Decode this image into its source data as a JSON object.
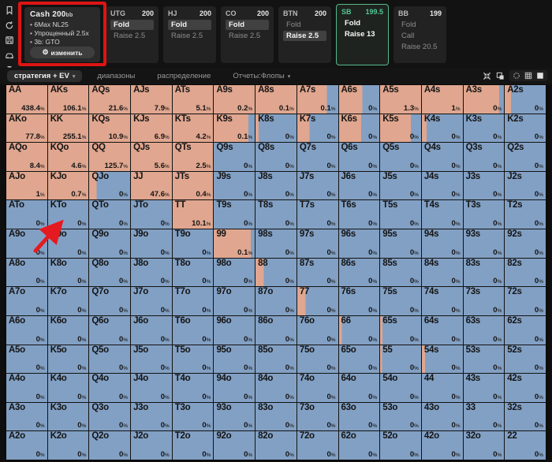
{
  "colors": {
    "raise": "#e0a68f",
    "fold": "#82a0c4",
    "accent_green": "#55c693",
    "annotation_red": "#e01616",
    "panel_bg": "#222222",
    "highlight_pill": "#414141"
  },
  "sidebar": {
    "icons": [
      "bookmark-icon",
      "history-icon",
      "save-icon",
      "car-icon",
      "text-cursor-icon"
    ]
  },
  "cash_panel": {
    "title": "Cash",
    "stack": "200",
    "stack_unit": "bb",
    "lines": [
      "6Max NL25",
      "Упрощенный 2.5x",
      "3b: GTO"
    ],
    "button_label": "изменить",
    "button_icon": "gear-icon"
  },
  "positions": [
    {
      "name": "UTG",
      "stack": "200",
      "selected": false,
      "actions": [
        {
          "label": "Fold",
          "state": "highlight"
        },
        {
          "label": "Raise 2.5",
          "state": "dim"
        }
      ]
    },
    {
      "name": "HJ",
      "stack": "200",
      "selected": false,
      "actions": [
        {
          "label": "Fold",
          "state": "highlight"
        },
        {
          "label": "Raise 2.5",
          "state": "dim"
        }
      ]
    },
    {
      "name": "CO",
      "stack": "200",
      "selected": false,
      "actions": [
        {
          "label": "Fold",
          "state": "highlight"
        },
        {
          "label": "Raise 2.5",
          "state": "dim"
        }
      ]
    },
    {
      "name": "BTN",
      "stack": "200",
      "selected": false,
      "actions": [
        {
          "label": "Fold",
          "state": "dim"
        },
        {
          "label": "Raise 2.5",
          "state": "highlight"
        }
      ]
    },
    {
      "name": "SB",
      "stack": "199.5",
      "selected": true,
      "actions": [
        {
          "label": "Fold",
          "state": "bold"
        },
        {
          "label": "Raise 13",
          "state": "bold"
        }
      ]
    },
    {
      "name": "BB",
      "stack": "199",
      "selected": false,
      "actions": [
        {
          "label": "Fold",
          "state": "dim"
        },
        {
          "label": "Call",
          "state": "dim"
        },
        {
          "label": "Raise 20.5",
          "state": "dim"
        }
      ]
    }
  ],
  "tabs": [
    {
      "label": "стратегия + EV",
      "active": true,
      "dropdown": true
    },
    {
      "label": "диапазоны",
      "active": false,
      "dropdown": false
    },
    {
      "label": "распределение",
      "active": false,
      "dropdown": false
    },
    {
      "label": "Отчеты:Флопы",
      "active": false,
      "dropdown": true
    }
  ],
  "view_icons": [
    "collapse-icon",
    "copy-icon",
    "record-icon",
    "grid-view-icon",
    "square-view-icon"
  ],
  "grid": {
    "cell_format": [
      "hand",
      "value_pct",
      "raise_color_width_pct"
    ],
    "rows": [
      [
        [
          "AA",
          "438.4",
          100
        ],
        [
          "AKs",
          "106.1",
          100
        ],
        [
          "AQs",
          "21.6",
          100
        ],
        [
          "AJs",
          "7.9",
          100
        ],
        [
          "ATs",
          "5.1",
          100
        ],
        [
          "A9s",
          "0.2",
          100
        ],
        [
          "A8s",
          "0.1",
          100
        ],
        [
          "A7s",
          "0.1",
          72
        ],
        [
          "A6s",
          "0",
          58
        ],
        [
          "A5s",
          "1.3",
          100
        ],
        [
          "A4s",
          "1",
          100
        ],
        [
          "A3s",
          "0",
          88
        ],
        [
          "A2s",
          "0",
          15
        ]
      ],
      [
        [
          "AKo",
          "77.8",
          100
        ],
        [
          "KK",
          "255.1",
          100
        ],
        [
          "KQs",
          "10.9",
          100
        ],
        [
          "KJs",
          "6.9",
          100
        ],
        [
          "KTs",
          "4.2",
          100
        ],
        [
          "K9s",
          "0.1",
          85
        ],
        [
          "K8s",
          "0",
          8
        ],
        [
          "K7s",
          "0",
          30
        ],
        [
          "K6s",
          "0",
          55
        ],
        [
          "K5s",
          "0",
          75
        ],
        [
          "K4s",
          "0",
          12
        ],
        [
          "K3s",
          "0",
          0
        ],
        [
          "K2s",
          "0",
          0
        ]
      ],
      [
        [
          "AQo",
          "8.4",
          100
        ],
        [
          "KQo",
          "4.6",
          100
        ],
        [
          "QQ",
          "125.7",
          100
        ],
        [
          "QJs",
          "5.6",
          100
        ],
        [
          "QTs",
          "2.5",
          100
        ],
        [
          "Q9s",
          "0",
          0
        ],
        [
          "Q8s",
          "0",
          0
        ],
        [
          "Q7s",
          "0",
          0
        ],
        [
          "Q6s",
          "0",
          0
        ],
        [
          "Q5s",
          "0",
          0
        ],
        [
          "Q4s",
          "0",
          0
        ],
        [
          "Q3s",
          "0",
          0
        ],
        [
          "Q2s",
          "0",
          0
        ]
      ],
      [
        [
          "AJo",
          "1",
          100
        ],
        [
          "KJo",
          "0.7",
          100
        ],
        [
          "QJo",
          "0",
          18
        ],
        [
          "JJ",
          "47.6",
          100
        ],
        [
          "JTs",
          "0.4",
          100
        ],
        [
          "J9s",
          "0",
          0
        ],
        [
          "J8s",
          "0",
          0
        ],
        [
          "J7s",
          "0",
          0
        ],
        [
          "J6s",
          "0",
          0
        ],
        [
          "J5s",
          "0",
          0
        ],
        [
          "J4s",
          "0",
          0
        ],
        [
          "J3s",
          "0",
          0
        ],
        [
          "J2s",
          "0",
          0
        ]
      ],
      [
        [
          "ATo",
          "0",
          0
        ],
        [
          "KTo",
          "0",
          0
        ],
        [
          "QTo",
          "0",
          0
        ],
        [
          "JTo",
          "0",
          0
        ],
        [
          "TT",
          "10.1",
          100
        ],
        [
          "T9s",
          "0",
          0
        ],
        [
          "T8s",
          "0",
          0
        ],
        [
          "T7s",
          "0",
          0
        ],
        [
          "T6s",
          "0",
          0
        ],
        [
          "T5s",
          "0",
          0
        ],
        [
          "T4s",
          "0",
          0
        ],
        [
          "T3s",
          "0",
          0
        ],
        [
          "T2s",
          "0",
          0
        ]
      ],
      [
        [
          "A9o",
          "0",
          0
        ],
        [
          "K9o",
          "0",
          0
        ],
        [
          "Q9o",
          "0",
          0
        ],
        [
          "J9o",
          "0",
          0
        ],
        [
          "T9o",
          "0",
          0
        ],
        [
          "99",
          "0.1",
          90
        ],
        [
          "98s",
          "0",
          0
        ],
        [
          "97s",
          "0",
          0
        ],
        [
          "96s",
          "0",
          0
        ],
        [
          "95s",
          "0",
          0
        ],
        [
          "94s",
          "0",
          0
        ],
        [
          "93s",
          "0",
          0
        ],
        [
          "92s",
          "0",
          0
        ]
      ],
      [
        [
          "A8o",
          "0",
          0
        ],
        [
          "K8o",
          "0",
          0
        ],
        [
          "Q8o",
          "0",
          0
        ],
        [
          "J8o",
          "0",
          0
        ],
        [
          "T8o",
          "0",
          0
        ],
        [
          "98o",
          "0",
          0
        ],
        [
          "88",
          "0",
          20
        ],
        [
          "87s",
          "0",
          0
        ],
        [
          "86s",
          "0",
          0
        ],
        [
          "85s",
          "0",
          0
        ],
        [
          "84s",
          "0",
          0
        ],
        [
          "83s",
          "0",
          0
        ],
        [
          "82s",
          "0",
          0
        ]
      ],
      [
        [
          "A7o",
          "0",
          0
        ],
        [
          "K7o",
          "0",
          0
        ],
        [
          "Q7o",
          "0",
          0
        ],
        [
          "J7o",
          "0",
          0
        ],
        [
          "T7o",
          "0",
          0
        ],
        [
          "97o",
          "0",
          0
        ],
        [
          "87o",
          "0",
          0
        ],
        [
          "77",
          "0",
          20
        ],
        [
          "76s",
          "0",
          0
        ],
        [
          "75s",
          "0",
          0
        ],
        [
          "74s",
          "0",
          0
        ],
        [
          "73s",
          "0",
          0
        ],
        [
          "72s",
          "0",
          0
        ]
      ],
      [
        [
          "A6o",
          "0",
          0
        ],
        [
          "K6o",
          "0",
          0
        ],
        [
          "Q6o",
          "0",
          0
        ],
        [
          "J6o",
          "0",
          0
        ],
        [
          "T6o",
          "0",
          0
        ],
        [
          "96o",
          "0",
          0
        ],
        [
          "86o",
          "0",
          0
        ],
        [
          "76o",
          "0",
          0
        ],
        [
          "66",
          "0",
          7
        ],
        [
          "65s",
          "0",
          6
        ],
        [
          "64s",
          "0",
          0
        ],
        [
          "63s",
          "0",
          0
        ],
        [
          "62s",
          "0",
          0
        ]
      ],
      [
        [
          "A5o",
          "0",
          0
        ],
        [
          "K5o",
          "0",
          0
        ],
        [
          "Q5o",
          "0",
          0
        ],
        [
          "J5o",
          "0",
          0
        ],
        [
          "T5o",
          "0",
          0
        ],
        [
          "95o",
          "0",
          0
        ],
        [
          "85o",
          "0",
          0
        ],
        [
          "75o",
          "0",
          0
        ],
        [
          "65o",
          "0",
          0
        ],
        [
          "55",
          "0",
          5
        ],
        [
          "54s",
          "0",
          8
        ],
        [
          "53s",
          "0",
          0
        ],
        [
          "52s",
          "0",
          0
        ]
      ],
      [
        [
          "A4o",
          "0",
          0
        ],
        [
          "K4o",
          "0",
          0
        ],
        [
          "Q4o",
          "0",
          0
        ],
        [
          "J4o",
          "0",
          0
        ],
        [
          "T4o",
          "0",
          0
        ],
        [
          "94o",
          "0",
          0
        ],
        [
          "84o",
          "0",
          0
        ],
        [
          "74o",
          "0",
          0
        ],
        [
          "64o",
          "0",
          0
        ],
        [
          "54o",
          "0",
          0
        ],
        [
          "44",
          "0",
          0
        ],
        [
          "43s",
          "0",
          0
        ],
        [
          "42s",
          "0",
          0
        ]
      ],
      [
        [
          "A3o",
          "0",
          0
        ],
        [
          "K3o",
          "0",
          0
        ],
        [
          "Q3o",
          "0",
          0
        ],
        [
          "J3o",
          "0",
          0
        ],
        [
          "T3o",
          "0",
          0
        ],
        [
          "93o",
          "0",
          0
        ],
        [
          "83o",
          "0",
          0
        ],
        [
          "73o",
          "0",
          0
        ],
        [
          "63o",
          "0",
          0
        ],
        [
          "53o",
          "0",
          0
        ],
        [
          "43o",
          "0",
          0
        ],
        [
          "33",
          "0",
          0
        ],
        [
          "32s",
          "0",
          0
        ]
      ],
      [
        [
          "A2o",
          "0",
          0
        ],
        [
          "K2o",
          "0",
          0
        ],
        [
          "Q2o",
          "0",
          0
        ],
        [
          "J2o",
          "0",
          0
        ],
        [
          "T2o",
          "0",
          0
        ],
        [
          "92o",
          "0",
          0
        ],
        [
          "82o",
          "0",
          0
        ],
        [
          "72o",
          "0",
          0
        ],
        [
          "62o",
          "0",
          0
        ],
        [
          "52o",
          "0",
          0
        ],
        [
          "42o",
          "0",
          0
        ],
        [
          "32o",
          "0",
          0
        ],
        [
          "22",
          "0",
          0
        ]
      ]
    ]
  }
}
